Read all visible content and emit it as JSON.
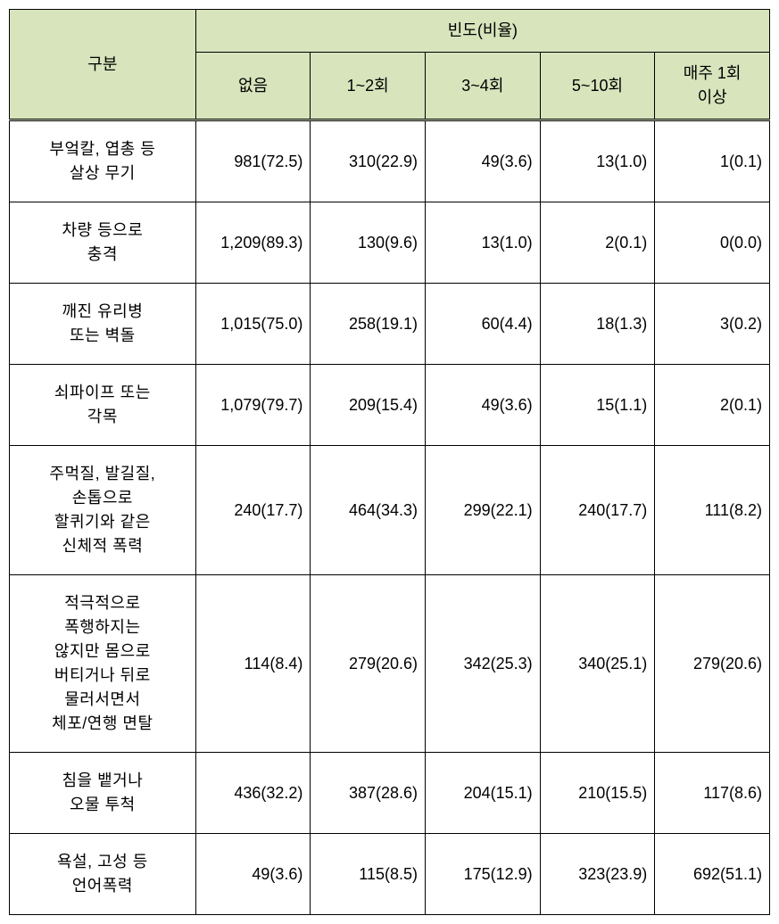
{
  "table": {
    "header": {
      "category_label": "구분",
      "frequency_label": "빈도(비율)",
      "columns": [
        "없음",
        "1~2회",
        "3~4회",
        "5~10회",
        "매주 1회\n이상"
      ]
    },
    "rows": [
      {
        "label": "부엌칼, 엽총 등\n살상 무기",
        "cells": [
          "981(72.5)",
          "310(22.9)",
          "49(3.6)",
          "13(1.0)",
          "1(0.1)"
        ]
      },
      {
        "label": "차량 등으로\n충격",
        "cells": [
          "1,209(89.3)",
          "130(9.6)",
          "13(1.0)",
          "2(0.1)",
          "0(0.0)"
        ]
      },
      {
        "label": "깨진 유리병\n또는 벽돌",
        "cells": [
          "1,015(75.0)",
          "258(19.1)",
          "60(4.4)",
          "18(1.3)",
          "3(0.2)"
        ]
      },
      {
        "label": "쇠파이프 또는\n각목",
        "cells": [
          "1,079(79.7)",
          "209(15.4)",
          "49(3.6)",
          "15(1.1)",
          "2(0.1)"
        ]
      },
      {
        "label": "주먹질, 발길질,\n손톱으로\n할퀴기와 같은\n신체적 폭력",
        "cells": [
          "240(17.7)",
          "464(34.3)",
          "299(22.1)",
          "240(17.7)",
          "111(8.2)"
        ]
      },
      {
        "label": "적극적으로\n폭행하지는\n않지만 몸으로\n버티거나 뒤로\n물러서면서\n체포/연행 면탈",
        "cells": [
          "114(8.4)",
          "279(20.6)",
          "342(25.3)",
          "340(25.1)",
          "279(20.6)"
        ]
      },
      {
        "label": "침을 뱉거나\n오물 투척",
        "cells": [
          "436(32.2)",
          "387(28.6)",
          "204(15.1)",
          "210(15.5)",
          "117(8.6)"
        ]
      },
      {
        "label": "욕설, 고성 등\n언어폭력",
        "cells": [
          "49(3.6)",
          "115(8.5)",
          "175(12.9)",
          "323(23.9)",
          "692(51.1)"
        ]
      }
    ]
  }
}
